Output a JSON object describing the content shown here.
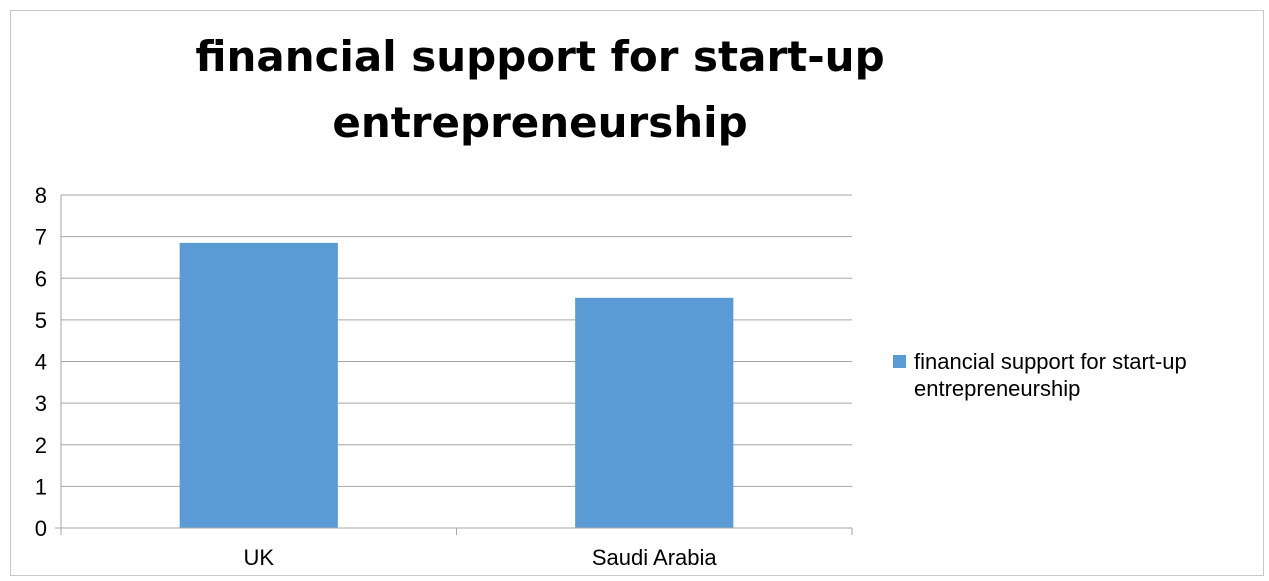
{
  "chart_data": {
    "type": "bar",
    "title": "financial support for start-up entrepreneurship",
    "categories": [
      "UK",
      "Saudi Arabia"
    ],
    "series": [
      {
        "name": "financial support for start-up entrepreneurship",
        "values": [
          6.85,
          5.53
        ],
        "color": "#5b9bd5"
      }
    ],
    "ylim": [
      0,
      8
    ],
    "yticks": [
      "0",
      "1",
      "2",
      "3",
      "4",
      "5",
      "6",
      "7",
      "8"
    ],
    "grid": true,
    "legend_position": "right"
  }
}
